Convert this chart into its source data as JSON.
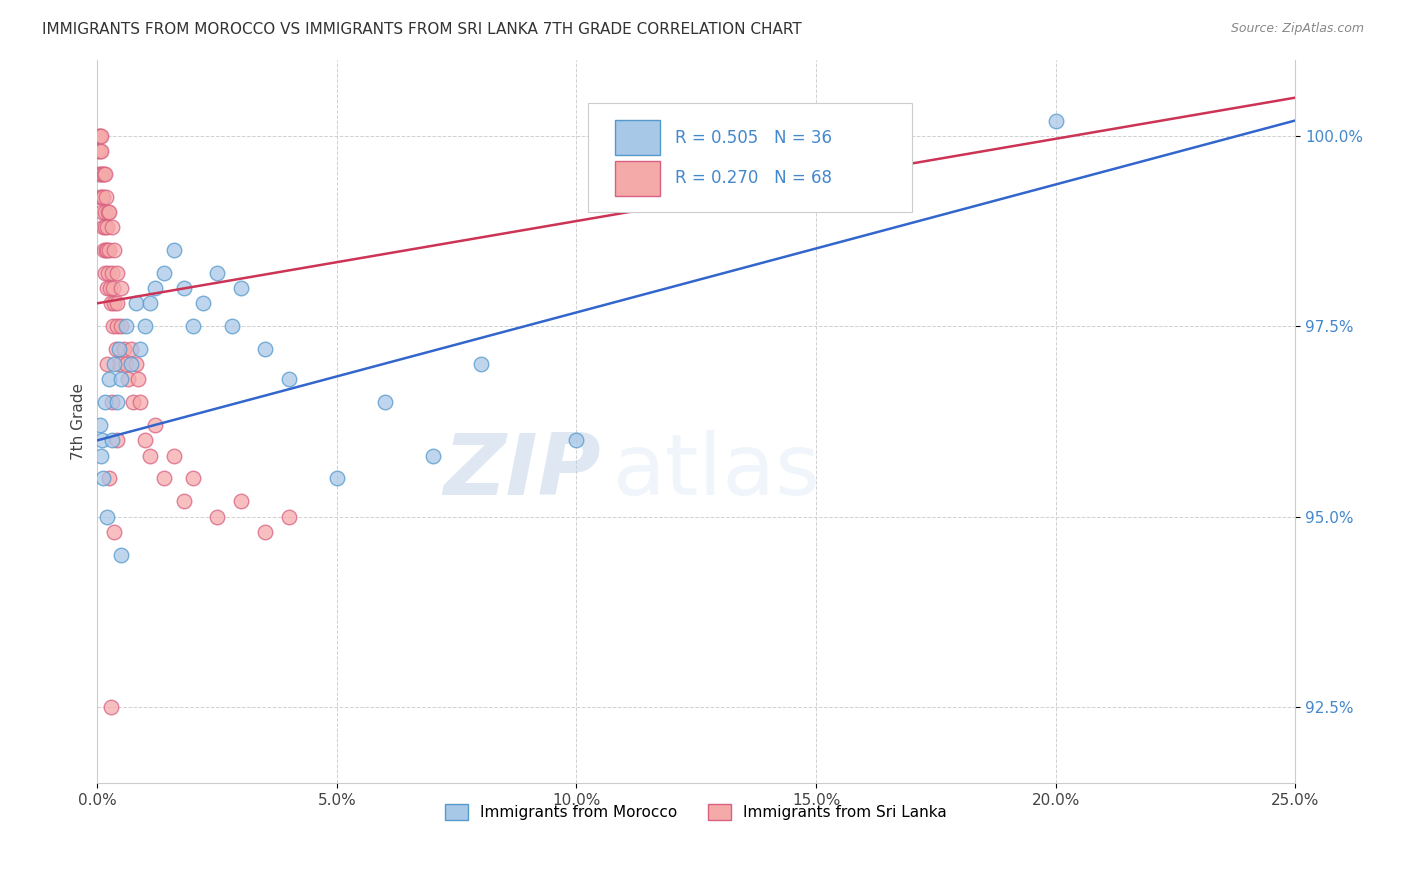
{
  "title": "IMMIGRANTS FROM MOROCCO VS IMMIGRANTS FROM SRI LANKA 7TH GRADE CORRELATION CHART",
  "source": "Source: ZipAtlas.com",
  "ylabel": "7th Grade",
  "xlim": [
    0.0,
    25.0
  ],
  "ylim": [
    91.5,
    101.0
  ],
  "morocco_color": "#a8c8e8",
  "morocco_edge": "#5599cc",
  "srilanka_color": "#f5aaaa",
  "srilanka_edge": "#d96080",
  "morocco_line_color": "#3366cc",
  "srilanka_line_color": "#cc3355",
  "morocco_label": "Immigrants from Morocco",
  "srilanka_label": "Immigrants from Sri Lanka",
  "watermark_zip": "ZIP",
  "watermark_atlas": "atlas",
  "background_color": "#ffffff",
  "grid_color": "#cccccc",
  "title_color": "#333333",
  "tick_color_y": "#4488cc",
  "y_ticks": [
    92.5,
    95.0,
    97.5,
    100.0
  ],
  "x_ticks": [
    0.0,
    5.0,
    10.0,
    15.0,
    20.0,
    25.0
  ],
  "morocco_trend_x0": 0.0,
  "morocco_trend_y0": 96.0,
  "morocco_trend_x1": 25.0,
  "morocco_trend_y1": 100.2,
  "srilanka_trend_x0": 0.0,
  "srilanka_trend_y0": 97.8,
  "srilanka_trend_x1": 25.0,
  "srilanka_trend_y1": 100.5
}
